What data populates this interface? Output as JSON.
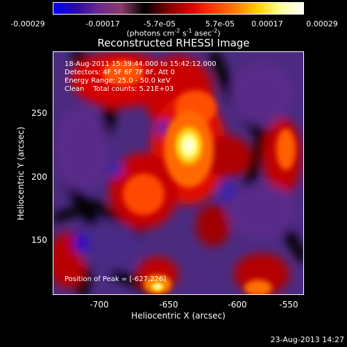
{
  "colorbar": {
    "tick_labels": [
      "-0.00029",
      "-0.00017",
      "-5.7e-05",
      "5.7e-05",
      "0.00017",
      "0.00029"
    ],
    "units_text": "(photons cm",
    "units_sup1": "-2",
    "units_mid": " s",
    "units_sup2": "-1",
    "units_mid2": " asec",
    "units_sup3": "-2",
    "units_end": ")",
    "colormap": [
      "#0000ff",
      "#2b0aa6",
      "#6a2a8a",
      "#8a3a6a",
      "#000000",
      "#7a0000",
      "#d20000",
      "#ff3a00",
      "#ff7a00",
      "#ffd000",
      "#ffff9a",
      "#ffffff"
    ]
  },
  "title": "Reconstructed RHESSI Image",
  "annotations": {
    "time_range": "18-Aug-2011 15:39:44.000 to 15:42:12.000",
    "detectors": "Detectors: 4F 5F 6F 7F 8F, Att 0",
    "energy": "Energy Range: 25.0 - 50.0 keV",
    "clean": "Clean    Total counts: 5.21E+03",
    "peak": "Position of Peak = [-627,226]"
  },
  "axes": {
    "xlabel": "Heliocentric X (arcsec)",
    "ylabel": "Heliocentric Y (arcsec)",
    "x_ticks": [
      "-700",
      "-650",
      "-600",
      "-550"
    ],
    "y_ticks": [
      "250",
      "200",
      "150"
    ]
  },
  "timestamp": "23-Aug-2013 14:27"
}
